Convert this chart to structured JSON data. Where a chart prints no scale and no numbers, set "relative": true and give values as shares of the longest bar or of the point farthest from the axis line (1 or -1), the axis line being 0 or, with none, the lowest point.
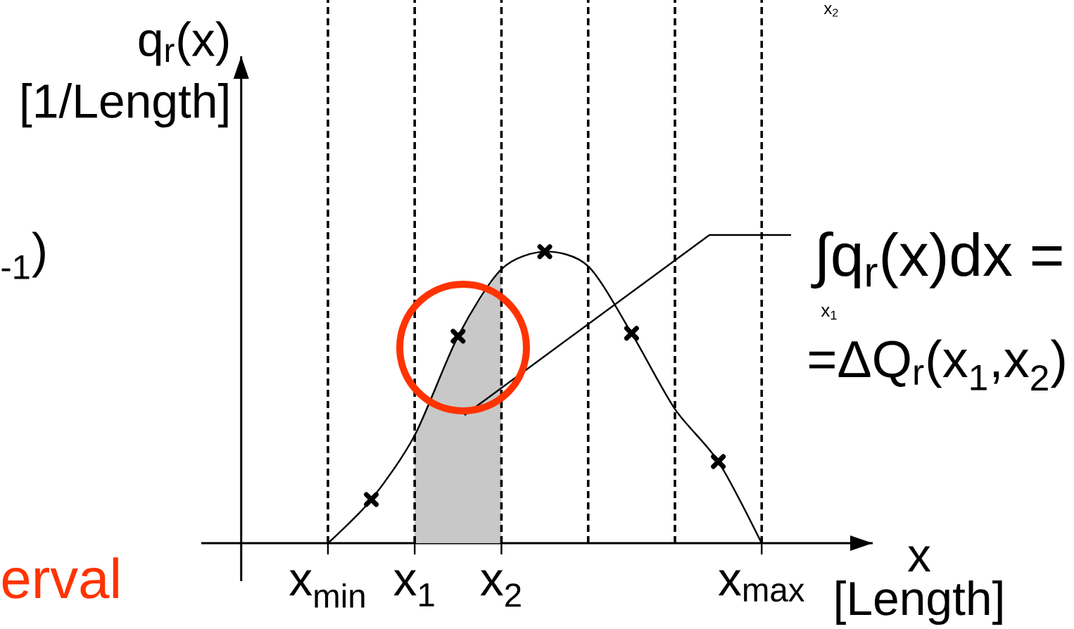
{
  "chart_data": {
    "type": "line",
    "xlabel": "x [Length]",
    "ylabel": "q$_{r}$(x) [1/Length]",
    "relative": true,
    "grid": "x",
    "categories": [
      "x$_{min}$",
      null,
      "x$_{1}$",
      null,
      "x$_{2}$",
      null,
      null,
      null,
      null,
      null,
      "x$_{max}$"
    ],
    "series": [
      {
        "type": "area",
        "color": "#c8c8c8",
        "values": [
          null,
          null,
          0.37,
          0.71,
          0.94,
          null,
          null,
          null,
          null,
          null,
          null
        ]
      },
      {
        "color": "#000000",
        "marker": "none",
        "line_style": "solid",
        "values": [
          0,
          0.15,
          0.37,
          0.71,
          0.94,
          1.0,
          0.95,
          0.72,
          0.46,
          0.28,
          0
        ]
      },
      {
        "type": "scatter",
        "color": "#000000",
        "marker": "cross",
        "values": [
          null,
          0.15,
          null,
          0.71,
          null,
          1.0,
          null,
          0.72,
          null,
          0.28,
          null
        ]
      }
    ],
    "annotations": [
      "∫q$_{r}$(x)dx =",
      "=ΔQ$_{r}$(x$_{1}$,x$_{2}$)",
      "x$_{2}$",
      "x$_{1}$",
      "$_{-1}$)",
      "erval"
    ]
  }
}
